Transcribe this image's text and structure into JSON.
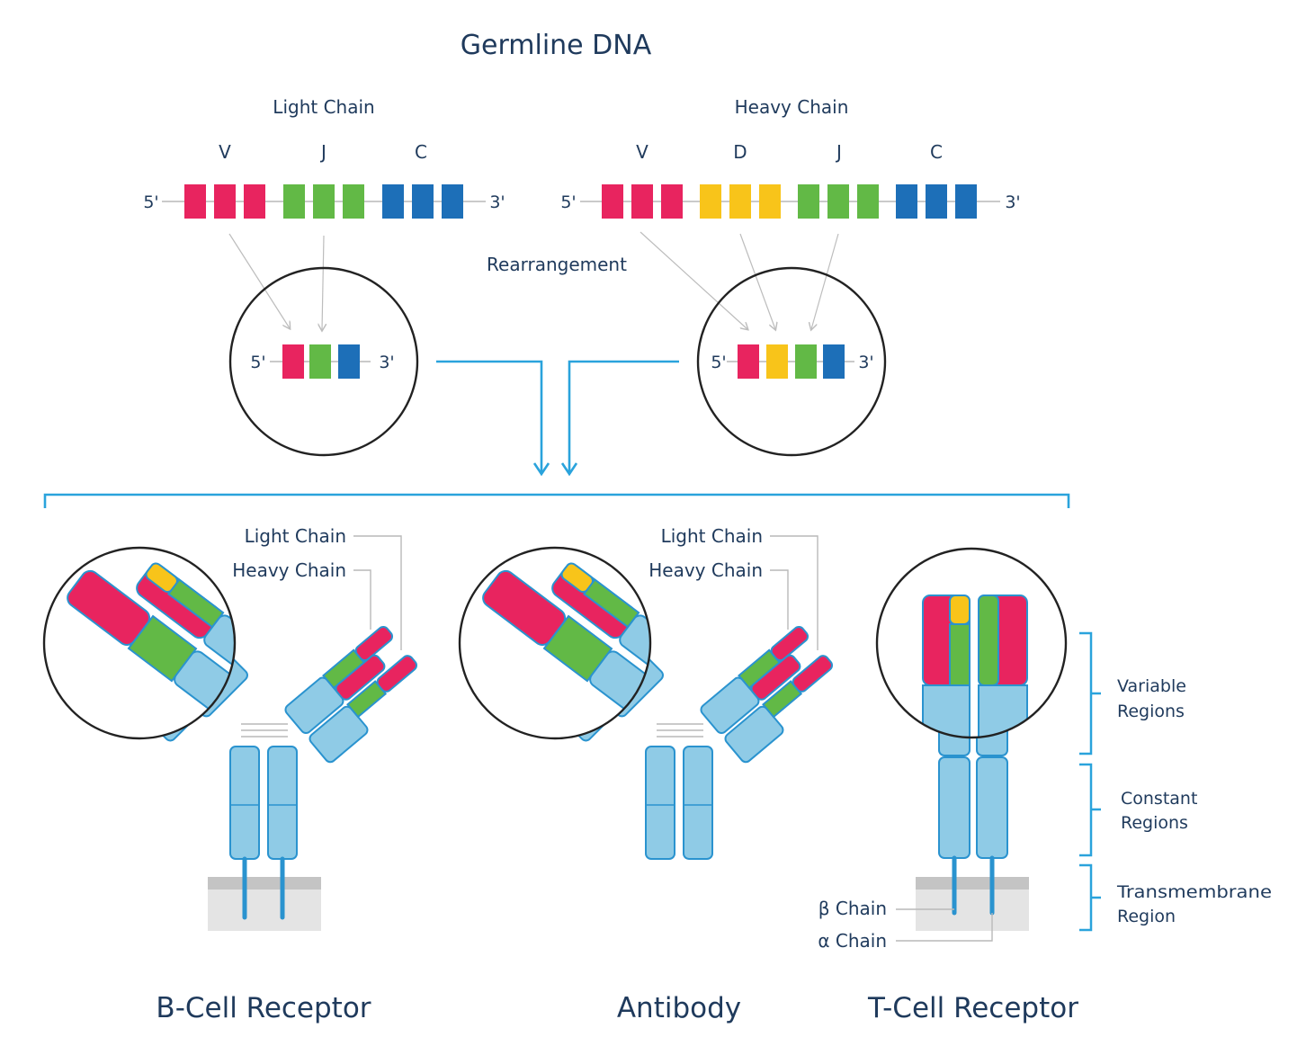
{
  "title": "Germline DNA",
  "light_chain": {
    "label": "Light Chain",
    "segments": [
      "V",
      "J",
      "C"
    ],
    "five_prime": "5'",
    "three_prime": "3'"
  },
  "heavy_chain": {
    "label": "Heavy Chain",
    "segments": [
      "V",
      "D",
      "J",
      "C"
    ],
    "five_prime": "5'",
    "three_prime": "3'"
  },
  "rearrangement_label": "Rearrangement",
  "bcr_labels": {
    "light": "Light Chain",
    "heavy": "Heavy Chain"
  },
  "ab_labels": {
    "light": "Light Chain",
    "heavy": "Heavy Chain"
  },
  "tcr_labels": {
    "beta": "β Chain",
    "alpha": "α Chain"
  },
  "regions": {
    "variable": [
      "Variable",
      "Regions"
    ],
    "constant": [
      "Constant",
      "Regions"
    ],
    "transmembrane": [
      "Transmembrane",
      "Region"
    ]
  },
  "captions": {
    "bcr": "B-Cell Receptor",
    "antibody": "Antibody",
    "tcr": "T-Cell Receptor"
  },
  "colors": {
    "V": "#e8245f",
    "D": "#f8c41a",
    "J": "#62b946",
    "C": "#1d6fb8",
    "constant": "#8fcbe6",
    "outline": "#2a93cf",
    "accent_line": "#2aa3dc"
  }
}
